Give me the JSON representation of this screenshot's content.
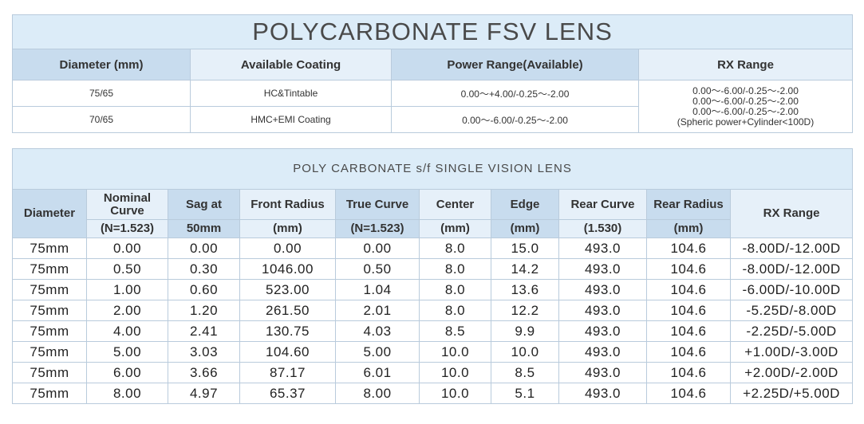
{
  "table1": {
    "title": "POLYCARBONATE FSV LENS",
    "headers": [
      "Diameter (mm)",
      "Available Coating",
      "Power Range(Available)",
      "RX Range"
    ],
    "rows": [
      [
        "75/65",
        "HC&Tintable",
        "0.00～+4.00/-0.25～-2.00"
      ],
      [
        "70/65",
        "HMC+EMI Coating",
        "0.00～-6.00/-0.25～-2.00"
      ]
    ],
    "rx_range": [
      "0.00～-6.00/-0.25～-2.00",
      "0.00～-6.00/-0.25～-2.00",
      "0.00～-6.00/-0.25～-2.00",
      "(Spheric power+Cylinder<100D)"
    ]
  },
  "table2": {
    "title": "POLY CARBONATE s/f SINGLE VISION LENS",
    "headers": [
      [
        "Diameter"
      ],
      [
        "Nominal Curve",
        "(N=1.523)"
      ],
      [
        "Sag at",
        "50mm"
      ],
      [
        "Front Radius",
        "(mm)"
      ],
      [
        "True Curve",
        "(N=1.523)"
      ],
      [
        "Center",
        "(mm)"
      ],
      [
        "Edge",
        "(mm)"
      ],
      [
        "Rear Curve",
        "(1.530)"
      ],
      [
        "Rear Radius",
        "(mm)"
      ],
      [
        "RX Range"
      ]
    ],
    "rows": [
      [
        "75mm",
        "0.00",
        "0.00",
        "0.00",
        "0.00",
        "8.0",
        "15.0",
        "493.0",
        "104.6",
        "-8.00D/-12.00D"
      ],
      [
        "75mm",
        "0.50",
        "0.30",
        "1046.00",
        "0.50",
        "8.0",
        "14.2",
        "493.0",
        "104.6",
        "-8.00D/-12.00D"
      ],
      [
        "75mm",
        "1.00",
        "0.60",
        "523.00",
        "1.04",
        "8.0",
        "13.6",
        "493.0",
        "104.6",
        "-6.00D/-10.00D"
      ],
      [
        "75mm",
        "2.00",
        "1.20",
        "261.50",
        "2.01",
        "8.0",
        "12.2",
        "493.0",
        "104.6",
        "-5.25D/-8.00D"
      ],
      [
        "75mm",
        "4.00",
        "2.41",
        "130.75",
        "4.03",
        "8.5",
        "9.9",
        "493.0",
        "104.6",
        "-2.25D/-5.00D"
      ],
      [
        "75mm",
        "5.00",
        "3.03",
        "104.60",
        "5.00",
        "10.0",
        "10.0",
        "493.0",
        "104.6",
        "+1.00D/-3.00D"
      ],
      [
        "75mm",
        "6.00",
        "3.66",
        "87.17",
        "6.01",
        "10.0",
        "8.5",
        "493.0",
        "104.6",
        "+2.00D/-2.00D"
      ],
      [
        "75mm",
        "8.00",
        "4.97",
        "65.37",
        "8.00",
        "10.0",
        "5.1",
        "493.0",
        "104.6",
        "+2.25D/+5.00D"
      ]
    ]
  }
}
